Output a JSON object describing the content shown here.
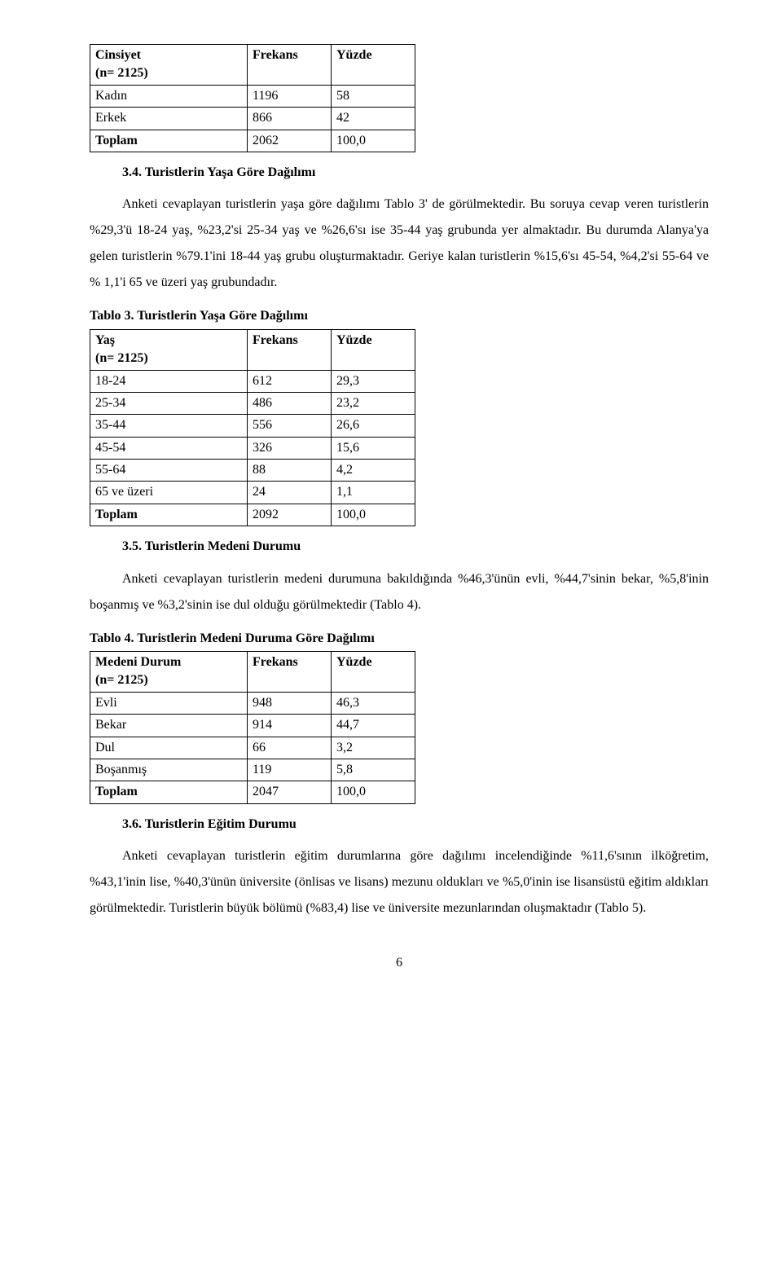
{
  "table1": {
    "headers": [
      "Cinsiyet\n(n= 2125)",
      "Frekans",
      "Yüzde"
    ],
    "rows": [
      [
        "Kadın",
        "1196",
        "58"
      ],
      [
        "Erkek",
        "866",
        "42"
      ],
      [
        "Toplam",
        "2062",
        "100,0"
      ]
    ]
  },
  "section34": {
    "heading": "3.4. Turistlerin Yaşa Göre Dağılımı",
    "para": "Anketi cevaplayan turistlerin yaşa göre dağılımı Tablo 3' de görülmektedir. Bu soruya cevap veren turistlerin %29,3'ü 18-24 yaş, %23,2'si 25-34 yaş ve %26,6'sı ise 35-44 yaş grubunda yer almaktadır. Bu durumda Alanya'ya gelen turistlerin %79.1'ini 18-44 yaş grubu oluşturmaktadır. Geriye kalan turistlerin %15,6'sı 45-54, %4,2'si 55-64 ve % 1,1'i 65 ve üzeri yaş grubundadır."
  },
  "table3": {
    "title": "Tablo 3. Turistlerin Yaşa Göre Dağılımı",
    "headers": [
      "Yaş\n(n= 2125)",
      "Frekans",
      "Yüzde"
    ],
    "rows": [
      [
        "18-24",
        "612",
        "29,3"
      ],
      [
        "25-34",
        "486",
        "23,2"
      ],
      [
        "35-44",
        "556",
        "26,6"
      ],
      [
        "45-54",
        "326",
        "15,6"
      ],
      [
        "55-64",
        "88",
        "4,2"
      ],
      [
        "65 ve üzeri",
        "24",
        "1,1"
      ],
      [
        "Toplam",
        "2092",
        "100,0"
      ]
    ]
  },
  "section35": {
    "heading": "3.5. Turistlerin Medeni Durumu",
    "para": "Anketi cevaplayan turistlerin medeni durumuna bakıldığında %46,3'ünün evli, %44,7'sinin bekar, %5,8'inin boşanmış ve %3,2'sinin ise dul olduğu görülmektedir (Tablo 4)."
  },
  "table4": {
    "title": "Tablo 4. Turistlerin Medeni Duruma Göre Dağılımı",
    "headers": [
      "Medeni Durum\n(n= 2125)",
      "Frekans",
      "Yüzde"
    ],
    "rows": [
      [
        "Evli",
        "948",
        "46,3"
      ],
      [
        "Bekar",
        "914",
        "44,7"
      ],
      [
        "Dul",
        "66",
        "3,2"
      ],
      [
        "Boşanmış",
        "119",
        "5,8"
      ],
      [
        "Toplam",
        "2047",
        "100,0"
      ]
    ]
  },
  "section36": {
    "heading": "3.6. Turistlerin Eğitim Durumu",
    "para": "Anketi cevaplayan turistlerin eğitim durumlarına göre dağılımı incelendiğinde %11,6'sının ilköğretim, %43,1'inin lise, %40,3'ünün üniversite (önlisas ve lisans) mezunu oldukları ve %5,0'inin ise lisansüstü eğitim aldıkları görülmektedir. Turistlerin büyük bölümü (%83,4) lise ve üniversite mezunlarından oluşmaktadır (Tablo 5)."
  },
  "pageNumber": "6"
}
